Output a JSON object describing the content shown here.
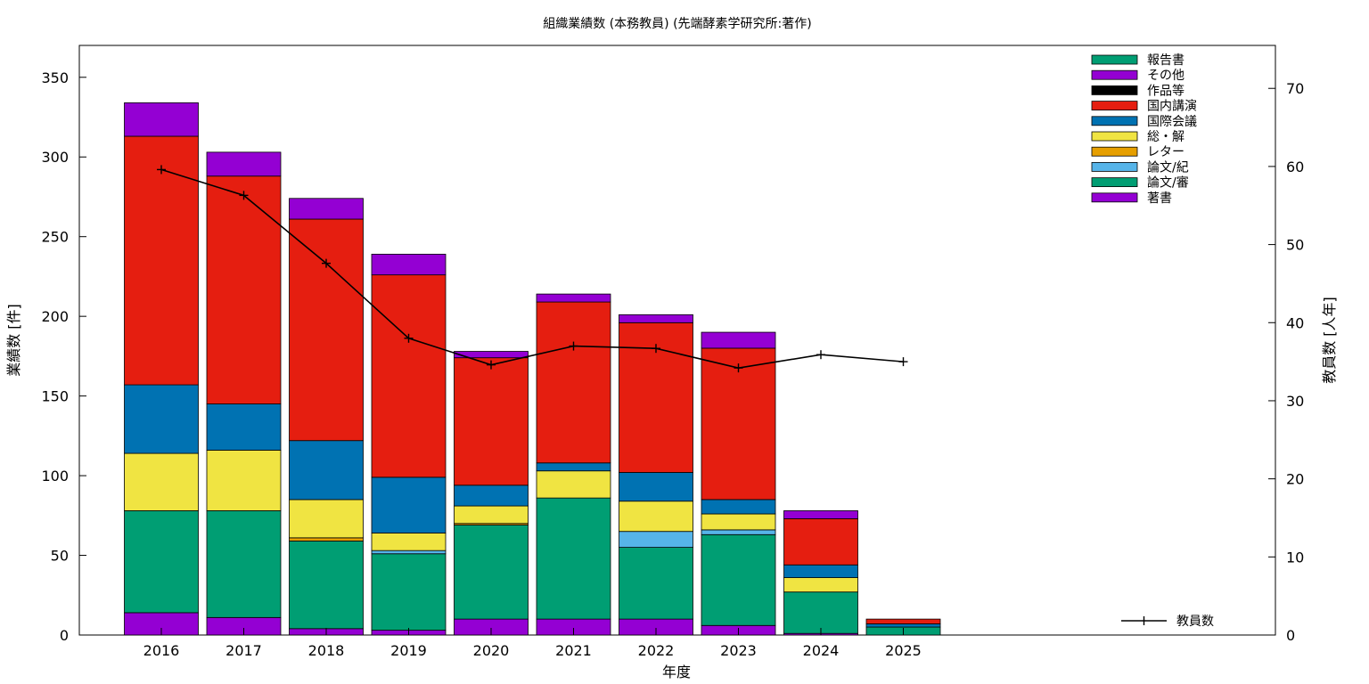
{
  "chart_data": {
    "type": "bar",
    "stacked": true,
    "title": "組織業績数 (本務教員) (先端酵素学研究所:著作)",
    "xlabel": "年度",
    "ylabel": "業績数 [件]",
    "y2label": "教員数 [人年]",
    "ylim": [
      0,
      370
    ],
    "y2lim": [
      0,
      75.5
    ],
    "yticks": [
      0,
      50,
      100,
      150,
      200,
      250,
      300,
      350
    ],
    "y2ticks": [
      0,
      10,
      20,
      30,
      40,
      50,
      60,
      70
    ],
    "categories": [
      "2016",
      "2017",
      "2018",
      "2019",
      "2020",
      "2021",
      "2022",
      "2023",
      "2024",
      "2025"
    ],
    "legend_position": "top-right",
    "series": [
      {
        "name": "著書",
        "color": "#9400d3",
        "values": [
          14,
          11,
          4,
          3,
          10,
          10,
          10,
          6,
          1,
          0
        ]
      },
      {
        "name": "論文/審",
        "color": "#009e73",
        "values": [
          64,
          67,
          55,
          48,
          59,
          76,
          45,
          57,
          26,
          5
        ]
      },
      {
        "name": "論文/紀",
        "color": "#56b4e9",
        "values": [
          0,
          0,
          0,
          2,
          0,
          0,
          10,
          3,
          0,
          0
        ]
      },
      {
        "name": "レター",
        "color": "#e69f00",
        "values": [
          0,
          0,
          2,
          0,
          1,
          0,
          0,
          0,
          0,
          0
        ]
      },
      {
        "name": "総・解",
        "color": "#f0e442",
        "values": [
          36,
          38,
          24,
          11,
          11,
          17,
          19,
          10,
          9,
          0
        ]
      },
      {
        "name": "国際会議",
        "color": "#0072b2",
        "values": [
          43,
          29,
          37,
          35,
          13,
          5,
          18,
          9,
          8,
          2
        ]
      },
      {
        "name": "国内講演",
        "color": "#e51e10",
        "values": [
          156,
          143,
          139,
          127,
          80,
          101,
          94,
          95,
          29,
          3
        ]
      },
      {
        "name": "作品等",
        "color": "#000000",
        "values": [
          0,
          0,
          0,
          0,
          0,
          0,
          0,
          0,
          0,
          0
        ]
      },
      {
        "name": "その他",
        "color": "#9400d3",
        "values": [
          21,
          15,
          13,
          13,
          4,
          5,
          5,
          10,
          5,
          0
        ]
      },
      {
        "name": "報告書",
        "color": "#009e73",
        "values": [
          0,
          0,
          0,
          0,
          0,
          0,
          0,
          0,
          0,
          0
        ]
      }
    ],
    "line": {
      "name": "教員数",
      "color": "#000000",
      "axis": "y2",
      "values": [
        59.6,
        56.3,
        47.6,
        38.0,
        34.6,
        37.0,
        36.7,
        34.2,
        35.9,
        35.0
      ]
    }
  }
}
